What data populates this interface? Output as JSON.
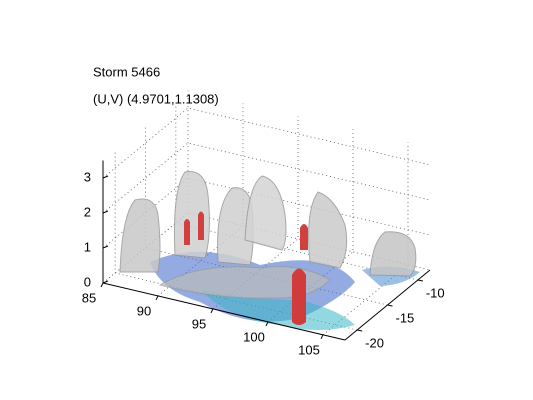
{
  "chart_data": {
    "type": "isosurface3d",
    "title": "Storm 5466",
    "subtitle": "(U,V) (4.9701,1.1308)",
    "xlim": [
      85,
      107
    ],
    "xticks": [
      85,
      90,
      95,
      100,
      105
    ],
    "ylim": [
      -22,
      -8
    ],
    "yticks": [
      -20,
      -15,
      -10
    ],
    "zlim": [
      0,
      3.5
    ],
    "zticks": [
      0,
      1,
      2,
      3
    ],
    "grid": true
  }
}
